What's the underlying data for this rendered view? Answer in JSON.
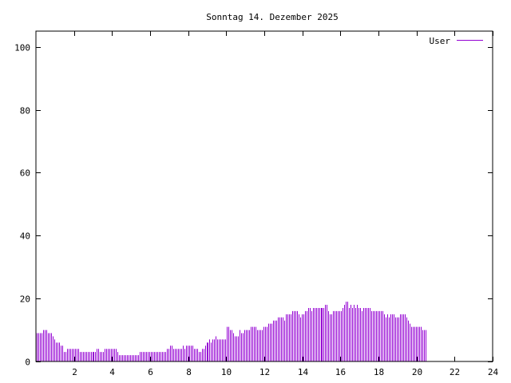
{
  "chart_data": {
    "type": "bar",
    "title": "Sonntag 14. Dezember 2025",
    "xlabel": "",
    "ylabel": "",
    "xlim": [
      0,
      24
    ],
    "ylim": [
      0,
      105
    ],
    "x_ticks": [
      2,
      4,
      6,
      8,
      10,
      12,
      14,
      16,
      18,
      20,
      22,
      24
    ],
    "y_ticks": [
      0,
      20,
      40,
      60,
      80,
      100
    ],
    "grid": false,
    "legend_position": "top-right",
    "bar_color": "#9400d3",
    "series": [
      {
        "name": "User",
        "color": "#9400d3",
        "step_minutes": 5,
        "values": [
          9,
          9,
          9,
          9,
          10,
          10,
          10,
          9,
          9,
          9,
          8,
          7,
          6,
          6,
          6,
          5,
          5,
          3,
          3,
          4,
          4,
          4,
          4,
          4,
          4,
          4,
          4,
          3,
          3,
          3,
          3,
          3,
          3,
          3,
          3,
          3,
          3,
          3,
          4,
          4,
          3,
          3,
          3,
          4,
          4,
          4,
          4,
          4,
          4,
          4,
          4,
          3,
          2,
          2,
          2,
          2,
          2,
          2,
          2,
          2,
          2,
          2,
          2,
          2,
          2,
          3,
          3,
          3,
          3,
          3,
          3,
          3,
          3,
          3,
          3,
          3,
          3,
          3,
          3,
          3,
          3,
          3,
          4,
          4,
          5,
          5,
          4,
          4,
          4,
          4,
          4,
          4,
          5,
          4,
          5,
          5,
          5,
          5,
          5,
          4,
          4,
          4,
          3,
          3,
          4,
          4,
          5,
          6,
          6,
          7,
          6,
          7,
          7,
          8,
          7,
          7,
          7,
          7,
          7,
          7,
          11,
          11,
          10,
          10,
          9,
          8,
          8,
          8,
          10,
          9,
          9,
          10,
          10,
          10,
          10,
          11,
          11,
          11,
          11,
          10,
          10,
          10,
          10,
          11,
          11,
          11,
          12,
          12,
          12,
          13,
          13,
          13,
          14,
          14,
          14,
          14,
          13,
          15,
          15,
          15,
          15,
          16,
          16,
          16,
          16,
          15,
          14,
          15,
          15,
          16,
          16,
          17,
          17,
          16,
          17,
          17,
          17,
          17,
          17,
          17,
          17,
          17,
          18,
          18,
          16,
          15,
          15,
          16,
          16,
          16,
          16,
          16,
          16,
          17,
          18,
          19,
          19,
          17,
          18,
          17,
          18,
          17,
          18,
          17,
          17,
          16,
          17,
          17,
          17,
          17,
          17,
          16,
          16,
          16,
          16,
          16,
          16,
          16,
          16,
          15,
          14,
          15,
          14,
          15,
          15,
          15,
          14,
          14,
          14,
          15,
          15,
          15,
          15,
          14,
          13,
          12,
          11,
          11,
          11,
          11,
          11,
          11,
          11,
          10,
          10,
          10
        ]
      }
    ]
  }
}
